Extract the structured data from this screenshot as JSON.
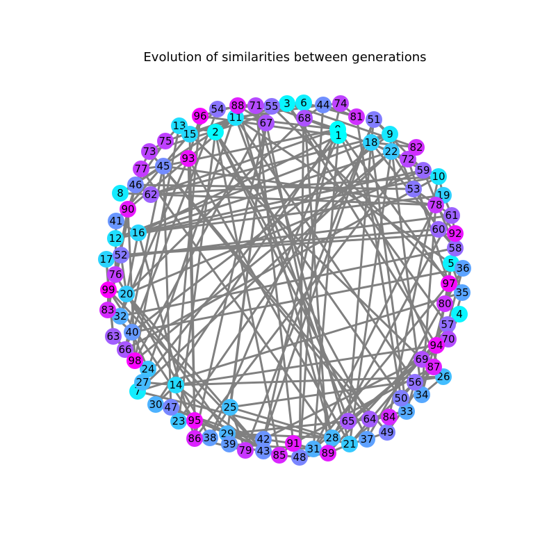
{
  "title": "Evolution of similarities between generations",
  "colors": {
    "background": "#ffffff",
    "edge": "#808080",
    "label": "#000000"
  },
  "nodes": [
    {
      "id": "0",
      "color": "#00ffff"
    },
    {
      "id": "1",
      "color": "#00ffff"
    },
    {
      "id": "2",
      "color": "#05faff"
    },
    {
      "id": "3",
      "color": "#08f7ff"
    },
    {
      "id": "4",
      "color": "#0af5ff"
    },
    {
      "id": "5",
      "color": "#0df2ff"
    },
    {
      "id": "6",
      "color": "#10efff"
    },
    {
      "id": "7",
      "color": "#12edff"
    },
    {
      "id": "8",
      "color": "#14ebff"
    },
    {
      "id": "9",
      "color": "#17e8ff"
    },
    {
      "id": "10",
      "color": "#1ae5ff"
    },
    {
      "id": "11",
      "color": "#1ce3ff"
    },
    {
      "id": "12",
      "color": "#1fe0ff"
    },
    {
      "id": "13",
      "color": "#21deff"
    },
    {
      "id": "14",
      "color": "#24dbff"
    },
    {
      "id": "15",
      "color": "#26d9ff"
    },
    {
      "id": "16",
      "color": "#29d6ff"
    },
    {
      "id": "17",
      "color": "#2bd4ff"
    },
    {
      "id": "18",
      "color": "#2ed1ff"
    },
    {
      "id": "19",
      "color": "#30cfff"
    },
    {
      "id": "20",
      "color": "#33ccff"
    },
    {
      "id": "21",
      "color": "#36c9ff"
    },
    {
      "id": "22",
      "color": "#38c7ff"
    },
    {
      "id": "23",
      "color": "#3bc4ff"
    },
    {
      "id": "24",
      "color": "#3dc2ff"
    },
    {
      "id": "25",
      "color": "#40bfff"
    },
    {
      "id": "26",
      "color": "#42bdff"
    },
    {
      "id": "27",
      "color": "#45baff"
    },
    {
      "id": "28",
      "color": "#47b8ff"
    },
    {
      "id": "29",
      "color": "#4ab5ff"
    },
    {
      "id": "30",
      "color": "#4db2ff"
    },
    {
      "id": "31",
      "color": "#4fb0ff"
    },
    {
      "id": "32",
      "color": "#52adff"
    },
    {
      "id": "33",
      "color": "#54abff"
    },
    {
      "id": "34",
      "color": "#57a8ff"
    },
    {
      "id": "35",
      "color": "#59a6ff"
    },
    {
      "id": "36",
      "color": "#5ca3ff"
    },
    {
      "id": "37",
      "color": "#5ea1ff"
    },
    {
      "id": "38",
      "color": "#619eff"
    },
    {
      "id": "39",
      "color": "#639cff"
    },
    {
      "id": "40",
      "color": "#6699ff"
    },
    {
      "id": "41",
      "color": "#6996ff"
    },
    {
      "id": "42",
      "color": "#6b94ff"
    },
    {
      "id": "43",
      "color": "#6e91ff"
    },
    {
      "id": "44",
      "color": "#708fff"
    },
    {
      "id": "45",
      "color": "#738cff"
    },
    {
      "id": "46",
      "color": "#758aff"
    },
    {
      "id": "47",
      "color": "#7887ff"
    },
    {
      "id": "48",
      "color": "#7a85ff"
    },
    {
      "id": "49",
      "color": "#7d82ff"
    },
    {
      "id": "50",
      "color": "#807fff"
    },
    {
      "id": "51",
      "color": "#827dff"
    },
    {
      "id": "52",
      "color": "#857aff"
    },
    {
      "id": "53",
      "color": "#8778ff"
    },
    {
      "id": "54",
      "color": "#8a75ff"
    },
    {
      "id": "55",
      "color": "#8c73ff"
    },
    {
      "id": "56",
      "color": "#8f70ff"
    },
    {
      "id": "57",
      "color": "#916eff"
    },
    {
      "id": "58",
      "color": "#946bff"
    },
    {
      "id": "59",
      "color": "#9669ff"
    },
    {
      "id": "60",
      "color": "#9966ff"
    },
    {
      "id": "61",
      "color": "#9c63ff"
    },
    {
      "id": "62",
      "color": "#9e61ff"
    },
    {
      "id": "63",
      "color": "#a15eff"
    },
    {
      "id": "64",
      "color": "#a35cff"
    },
    {
      "id": "65",
      "color": "#a659ff"
    },
    {
      "id": "66",
      "color": "#a857ff"
    },
    {
      "id": "67",
      "color": "#ab54ff"
    },
    {
      "id": "68",
      "color": "#ad52ff"
    },
    {
      "id": "69",
      "color": "#b04fff"
    },
    {
      "id": "70",
      "color": "#b34cff"
    },
    {
      "id": "71",
      "color": "#b54aff"
    },
    {
      "id": "72",
      "color": "#b847ff"
    },
    {
      "id": "73",
      "color": "#ba45ff"
    },
    {
      "id": "74",
      "color": "#bd42ff"
    },
    {
      "id": "75",
      "color": "#bf40ff"
    },
    {
      "id": "76",
      "color": "#c23dff"
    },
    {
      "id": "77",
      "color": "#c43bff"
    },
    {
      "id": "78",
      "color": "#c738ff"
    },
    {
      "id": "79",
      "color": "#c936ff"
    },
    {
      "id": "80",
      "color": "#cc33ff"
    },
    {
      "id": "81",
      "color": "#cf30ff"
    },
    {
      "id": "82",
      "color": "#d12eff"
    },
    {
      "id": "83",
      "color": "#d42bff"
    },
    {
      "id": "84",
      "color": "#d629ff"
    },
    {
      "id": "85",
      "color": "#d926ff"
    },
    {
      "id": "86",
      "color": "#db24ff"
    },
    {
      "id": "87",
      "color": "#de21ff"
    },
    {
      "id": "88",
      "color": "#e01fff"
    },
    {
      "id": "89",
      "color": "#e31cff"
    },
    {
      "id": "90",
      "color": "#e619ff"
    },
    {
      "id": "91",
      "color": "#e817ff"
    },
    {
      "id": "92",
      "color": "#eb14ff"
    },
    {
      "id": "93",
      "color": "#ed12ff"
    },
    {
      "id": "94",
      "color": "#f00fff"
    },
    {
      "id": "95",
      "color": "#f20dff"
    },
    {
      "id": "96",
      "color": "#f50aff"
    },
    {
      "id": "97",
      "color": "#f708ff"
    },
    {
      "id": "98",
      "color": "#fa05ff"
    },
    {
      "id": "99",
      "color": "#ff00ff"
    }
  ],
  "edges": [
    [
      "0",
      "26"
    ],
    [
      "0",
      "30"
    ],
    [
      "0",
      "97"
    ],
    [
      "0",
      "68"
    ],
    [
      "0",
      "45"
    ],
    [
      "0",
      "62"
    ],
    [
      "0",
      "11"
    ],
    [
      "1",
      "27"
    ],
    [
      "1",
      "16"
    ],
    [
      "1",
      "31"
    ],
    [
      "1",
      "38"
    ],
    [
      "1",
      "96"
    ],
    [
      "2",
      "50"
    ],
    [
      "2",
      "37"
    ],
    [
      "2",
      "23"
    ],
    [
      "2",
      "64"
    ],
    [
      "2",
      "85"
    ],
    [
      "2",
      "13"
    ],
    [
      "3",
      "57"
    ],
    [
      "3",
      "15"
    ],
    [
      "3",
      "54"
    ],
    [
      "3",
      "94"
    ],
    [
      "3",
      "82"
    ],
    [
      "6",
      "81"
    ],
    [
      "6",
      "55"
    ],
    [
      "6",
      "73"
    ],
    [
      "6",
      "89"
    ],
    [
      "6",
      "48"
    ],
    [
      "6",
      "88"
    ],
    [
      "9",
      "22"
    ],
    [
      "9",
      "51"
    ],
    [
      "9",
      "62"
    ],
    [
      "9",
      "40"
    ],
    [
      "9",
      "18"
    ],
    [
      "9",
      "12"
    ],
    [
      "9",
      "53"
    ],
    [
      "10",
      "72"
    ],
    [
      "10",
      "84"
    ],
    [
      "10",
      "12"
    ],
    [
      "10",
      "59"
    ],
    [
      "10",
      "66"
    ],
    [
      "10",
      "19"
    ],
    [
      "10",
      "62"
    ],
    [
      "11",
      "93"
    ],
    [
      "11",
      "56"
    ],
    [
      "11",
      "8"
    ],
    [
      "11",
      "5"
    ],
    [
      "11",
      "65"
    ],
    [
      "11",
      "75"
    ],
    [
      "13",
      "75"
    ],
    [
      "13",
      "15"
    ],
    [
      "13",
      "98"
    ],
    [
      "14",
      "43"
    ],
    [
      "14",
      "26"
    ],
    [
      "14",
      "94"
    ],
    [
      "14",
      "96"
    ],
    [
      "14",
      "27"
    ],
    [
      "14",
      "30"
    ],
    [
      "15",
      "95"
    ],
    [
      "15",
      "41"
    ],
    [
      "15",
      "54"
    ],
    [
      "15",
      "69"
    ],
    [
      "16",
      "86"
    ],
    [
      "16",
      "59"
    ],
    [
      "16",
      "19"
    ],
    [
      "16",
      "22"
    ],
    [
      "16",
      "41"
    ],
    [
      "17",
      "52"
    ],
    [
      "17",
      "61"
    ],
    [
      "17",
      "63"
    ],
    [
      "17",
      "99"
    ],
    [
      "18",
      "58"
    ],
    [
      "18",
      "82"
    ],
    [
      "18",
      "33"
    ],
    [
      "18",
      "51"
    ],
    [
      "18",
      "23"
    ],
    [
      "18",
      "59"
    ],
    [
      "20",
      "43"
    ],
    [
      "20",
      "99"
    ],
    [
      "20",
      "59"
    ],
    [
      "20",
      "16"
    ],
    [
      "20",
      "29"
    ],
    [
      "20",
      "68"
    ],
    [
      "20",
      "38"
    ],
    [
      "20",
      "32"
    ],
    [
      "20",
      "52"
    ],
    [
      "20",
      "76"
    ],
    [
      "21",
      "71"
    ],
    [
      "21",
      "4"
    ],
    [
      "21",
      "89"
    ],
    [
      "21",
      "37"
    ],
    [
      "21",
      "93"
    ],
    [
      "21",
      "7"
    ],
    [
      "22",
      "72"
    ],
    [
      "22",
      "98"
    ],
    [
      "22",
      "7"
    ],
    [
      "22",
      "55"
    ],
    [
      "22",
      "60"
    ],
    [
      "22",
      "21"
    ],
    [
      "24",
      "88"
    ],
    [
      "24",
      "98"
    ],
    [
      "24",
      "27"
    ],
    [
      "25",
      "28"
    ],
    [
      "25",
      "26"
    ],
    [
      "25",
      "38"
    ],
    [
      "25",
      "79"
    ],
    [
      "28",
      "94"
    ],
    [
      "28",
      "77"
    ],
    [
      "28",
      "67"
    ],
    [
      "28",
      "88"
    ],
    [
      "28",
      "61"
    ],
    [
      "28",
      "89"
    ],
    [
      "29",
      "42"
    ],
    [
      "29",
      "28"
    ],
    [
      "29",
      "95"
    ],
    [
      "29",
      "85"
    ],
    [
      "29",
      "84"
    ],
    [
      "29",
      "67"
    ],
    [
      "31",
      "78"
    ],
    [
      "31",
      "97"
    ],
    [
      "31",
      "48"
    ],
    [
      "31",
      "39"
    ],
    [
      "32",
      "58"
    ],
    [
      "32",
      "93"
    ],
    [
      "33",
      "56"
    ],
    [
      "33",
      "65"
    ],
    [
      "33",
      "50"
    ],
    [
      "34",
      "80"
    ],
    [
      "34",
      "9"
    ],
    [
      "34",
      "26"
    ],
    [
      "35",
      "5"
    ],
    [
      "35",
      "7"
    ],
    [
      "35",
      "70"
    ],
    [
      "36",
      "80"
    ],
    [
      "36",
      "57"
    ],
    [
      "37",
      "64"
    ],
    [
      "37",
      "49"
    ],
    [
      "37",
      "36"
    ],
    [
      "39",
      "85"
    ],
    [
      "39",
      "79"
    ],
    [
      "40",
      "24"
    ],
    [
      "40",
      "66"
    ],
    [
      "40",
      "83"
    ],
    [
      "40",
      "36"
    ],
    [
      "40",
      "54"
    ],
    [
      "42",
      "69"
    ],
    [
      "42",
      "30"
    ],
    [
      "42",
      "74"
    ],
    [
      "42",
      "51"
    ],
    [
      "42",
      "91"
    ],
    [
      "42",
      "79"
    ],
    [
      "44",
      "48"
    ],
    [
      "44",
      "81"
    ],
    [
      "44",
      "68"
    ],
    [
      "44",
      "74"
    ],
    [
      "44",
      "11"
    ],
    [
      "45",
      "77"
    ],
    [
      "45",
      "8"
    ],
    [
      "45",
      "66"
    ],
    [
      "45",
      "78"
    ],
    [
      "46",
      "53"
    ],
    [
      "46",
      "8"
    ],
    [
      "46",
      "62"
    ],
    [
      "46",
      "83"
    ],
    [
      "46",
      "75"
    ],
    [
      "47",
      "23"
    ],
    [
      "47",
      "45"
    ],
    [
      "47",
      "30"
    ],
    [
      "49",
      "73"
    ],
    [
      "49",
      "84"
    ],
    [
      "49",
      "87"
    ],
    [
      "50",
      "81"
    ],
    [
      "50",
      "56"
    ],
    [
      "51",
      "79"
    ],
    [
      "51",
      "59"
    ],
    [
      "52",
      "92"
    ],
    [
      "52",
      "60"
    ],
    [
      "52",
      "76"
    ],
    [
      "55",
      "98"
    ],
    [
      "55",
      "35"
    ],
    [
      "56",
      "87"
    ],
    [
      "56",
      "21"
    ],
    [
      "57",
      "70"
    ],
    [
      "58",
      "59"
    ],
    [
      "58",
      "60"
    ],
    [
      "61",
      "53"
    ],
    [
      "61",
      "92"
    ],
    [
      "61",
      "19"
    ],
    [
      "63",
      "24"
    ],
    [
      "63",
      "99"
    ],
    [
      "63",
      "66"
    ],
    [
      "64",
      "65"
    ],
    [
      "64",
      "33"
    ],
    [
      "64",
      "84"
    ],
    [
      "64",
      "73"
    ],
    [
      "65",
      "69"
    ],
    [
      "65",
      "18"
    ],
    [
      "67",
      "71"
    ],
    [
      "67",
      "86"
    ],
    [
      "67",
      "25"
    ],
    [
      "67",
      "88"
    ],
    [
      "70",
      "94"
    ],
    [
      "70",
      "4"
    ],
    [
      "70",
      "31"
    ],
    [
      "71",
      "91"
    ],
    [
      "71",
      "55"
    ],
    [
      "71",
      "54"
    ],
    [
      "72",
      "82"
    ],
    [
      "72",
      "97"
    ],
    [
      "72",
      "86"
    ],
    [
      "73",
      "77"
    ],
    [
      "73",
      "75"
    ],
    [
      "74",
      "81"
    ],
    [
      "76",
      "83"
    ],
    [
      "76",
      "41"
    ],
    [
      "76",
      "90"
    ],
    [
      "77",
      "90"
    ],
    [
      "78",
      "92"
    ],
    [
      "78",
      "34"
    ],
    [
      "78",
      "8"
    ],
    [
      "78",
      "19"
    ],
    [
      "80",
      "87"
    ],
    [
      "80",
      "92"
    ],
    [
      "80",
      "4"
    ],
    [
      "83",
      "52"
    ],
    [
      "85",
      "91"
    ],
    [
      "85",
      "48"
    ],
    [
      "85",
      "47"
    ],
    [
      "86",
      "95"
    ],
    [
      "86",
      "79"
    ],
    [
      "86",
      "38"
    ],
    [
      "87",
      "91"
    ],
    [
      "87",
      "94"
    ],
    [
      "89",
      "91"
    ],
    [
      "89",
      "57"
    ],
    [
      "89",
      "48"
    ],
    [
      "90",
      "41"
    ],
    [
      "90",
      "93"
    ],
    [
      "90",
      "98"
    ],
    [
      "93",
      "95"
    ],
    [
      "93",
      "96"
    ],
    [
      "95",
      "99"
    ],
    [
      "95",
      "23"
    ],
    [
      "96",
      "88"
    ],
    [
      "97",
      "5"
    ],
    [
      "97",
      "80"
    ],
    [
      "99",
      "43"
    ],
    [
      "99",
      "83"
    ]
  ]
}
